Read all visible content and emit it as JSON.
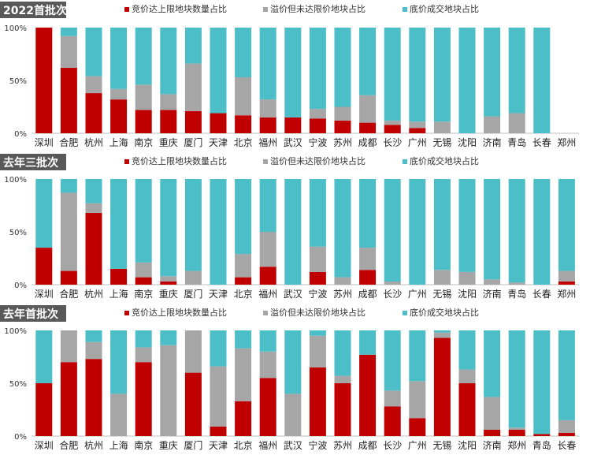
{
  "figure": {
    "legend": {
      "red": "竞价达上限地块数量占比",
      "gray": "溢价但未达限价地块占比",
      "teal": "底价成交地块占比"
    },
    "colors": {
      "red": "#c00000",
      "gray": "#a6a6a6",
      "teal": "#4bbec8",
      "title_bg": "#595959"
    },
    "y_ticks": [
      "0%",
      "50%",
      "100%"
    ]
  },
  "chart_data": [
    {
      "type": "bar",
      "stacked": true,
      "title": "2022首批次",
      "categories": [
        "深圳",
        "合肥",
        "杭州",
        "上海",
        "南京",
        "重庆",
        "厦门",
        "天津",
        "北京",
        "福州",
        "武汉",
        "宁波",
        "苏州",
        "成都",
        "长沙",
        "广州",
        "无锡",
        "沈阳",
        "济南",
        "青岛",
        "长春",
        "郑州"
      ],
      "series": [
        {
          "name": "竞价达上限地块数量占比",
          "values": [
            100,
            62,
            38,
            32,
            22,
            22,
            21,
            19,
            17,
            15,
            15,
            14,
            12,
            10,
            8,
            5,
            0,
            0,
            0,
            0,
            0,
            0
          ]
        },
        {
          "name": "溢价但未达限价地块占比",
          "values": [
            0,
            30,
            16,
            10,
            24,
            15,
            45,
            0,
            36,
            17,
            0,
            9,
            13,
            26,
            4,
            6,
            11,
            0,
            16,
            19,
            0,
            0
          ]
        },
        {
          "name": "底价成交地块占比",
          "values": [
            0,
            8,
            46,
            58,
            54,
            63,
            34,
            81,
            47,
            68,
            85,
            77,
            75,
            64,
            88,
            89,
            89,
            100,
            84,
            81,
            100,
            0
          ]
        }
      ],
      "ylim": [
        0,
        100
      ]
    },
    {
      "type": "bar",
      "stacked": true,
      "title": "去年三批次",
      "categories": [
        "深圳",
        "合肥",
        "杭州",
        "上海",
        "南京",
        "重庆",
        "厦门",
        "天津",
        "北京",
        "福州",
        "武汉",
        "宁波",
        "苏州",
        "成都",
        "长沙",
        "广州",
        "无锡",
        "沈阳",
        "济南",
        "青岛",
        "长春",
        "郑州"
      ],
      "series": [
        {
          "name": "竞价达上限地块数量占比",
          "values": [
            35,
            13,
            68,
            15,
            7,
            3,
            0,
            0,
            7,
            17,
            0,
            12,
            0,
            14,
            0,
            0,
            0,
            0,
            0,
            0,
            0,
            3
          ]
        },
        {
          "name": "溢价但未达限价地块占比",
          "values": [
            0,
            74,
            9,
            0,
            14,
            5,
            13,
            0,
            22,
            33,
            0,
            24,
            7,
            21,
            3,
            0,
            14,
            12,
            5,
            2,
            0,
            10
          ]
        },
        {
          "name": "底价成交地块占比",
          "values": [
            65,
            13,
            23,
            85,
            79,
            92,
            87,
            100,
            71,
            50,
            100,
            64,
            93,
            65,
            97,
            100,
            86,
            88,
            95,
            98,
            100,
            87
          ]
        }
      ],
      "ylim": [
        0,
        100
      ]
    },
    {
      "type": "bar",
      "stacked": true,
      "title": "去年首批次",
      "categories": [
        "深圳",
        "合肥",
        "杭州",
        "上海",
        "南京",
        "重庆",
        "厦门",
        "天津",
        "北京",
        "福州",
        "武汉",
        "宁波",
        "苏州",
        "成都",
        "长沙",
        "广州",
        "无锡",
        "沈阳",
        "济南",
        "郑州",
        "青岛",
        "长春"
      ],
      "series": [
        {
          "name": "竞价达上限地块数量占比",
          "values": [
            50,
            70,
            73,
            0,
            70,
            0,
            60,
            9,
            33,
            55,
            0,
            65,
            50,
            77,
            28,
            17,
            93,
            50,
            6,
            6,
            2,
            3
          ]
        },
        {
          "name": "溢价但未达限价地块占比",
          "values": [
            0,
            30,
            16,
            40,
            14,
            86,
            40,
            57,
            50,
            25,
            40,
            30,
            7,
            0,
            15,
            35,
            5,
            13,
            31,
            2,
            0,
            12
          ]
        },
        {
          "name": "底价成交地块占比",
          "values": [
            50,
            0,
            11,
            60,
            16,
            14,
            0,
            34,
            17,
            20,
            60,
            5,
            43,
            23,
            57,
            48,
            2,
            37,
            63,
            92,
            98,
            85
          ]
        }
      ],
      "ylim": [
        0,
        100
      ]
    }
  ]
}
